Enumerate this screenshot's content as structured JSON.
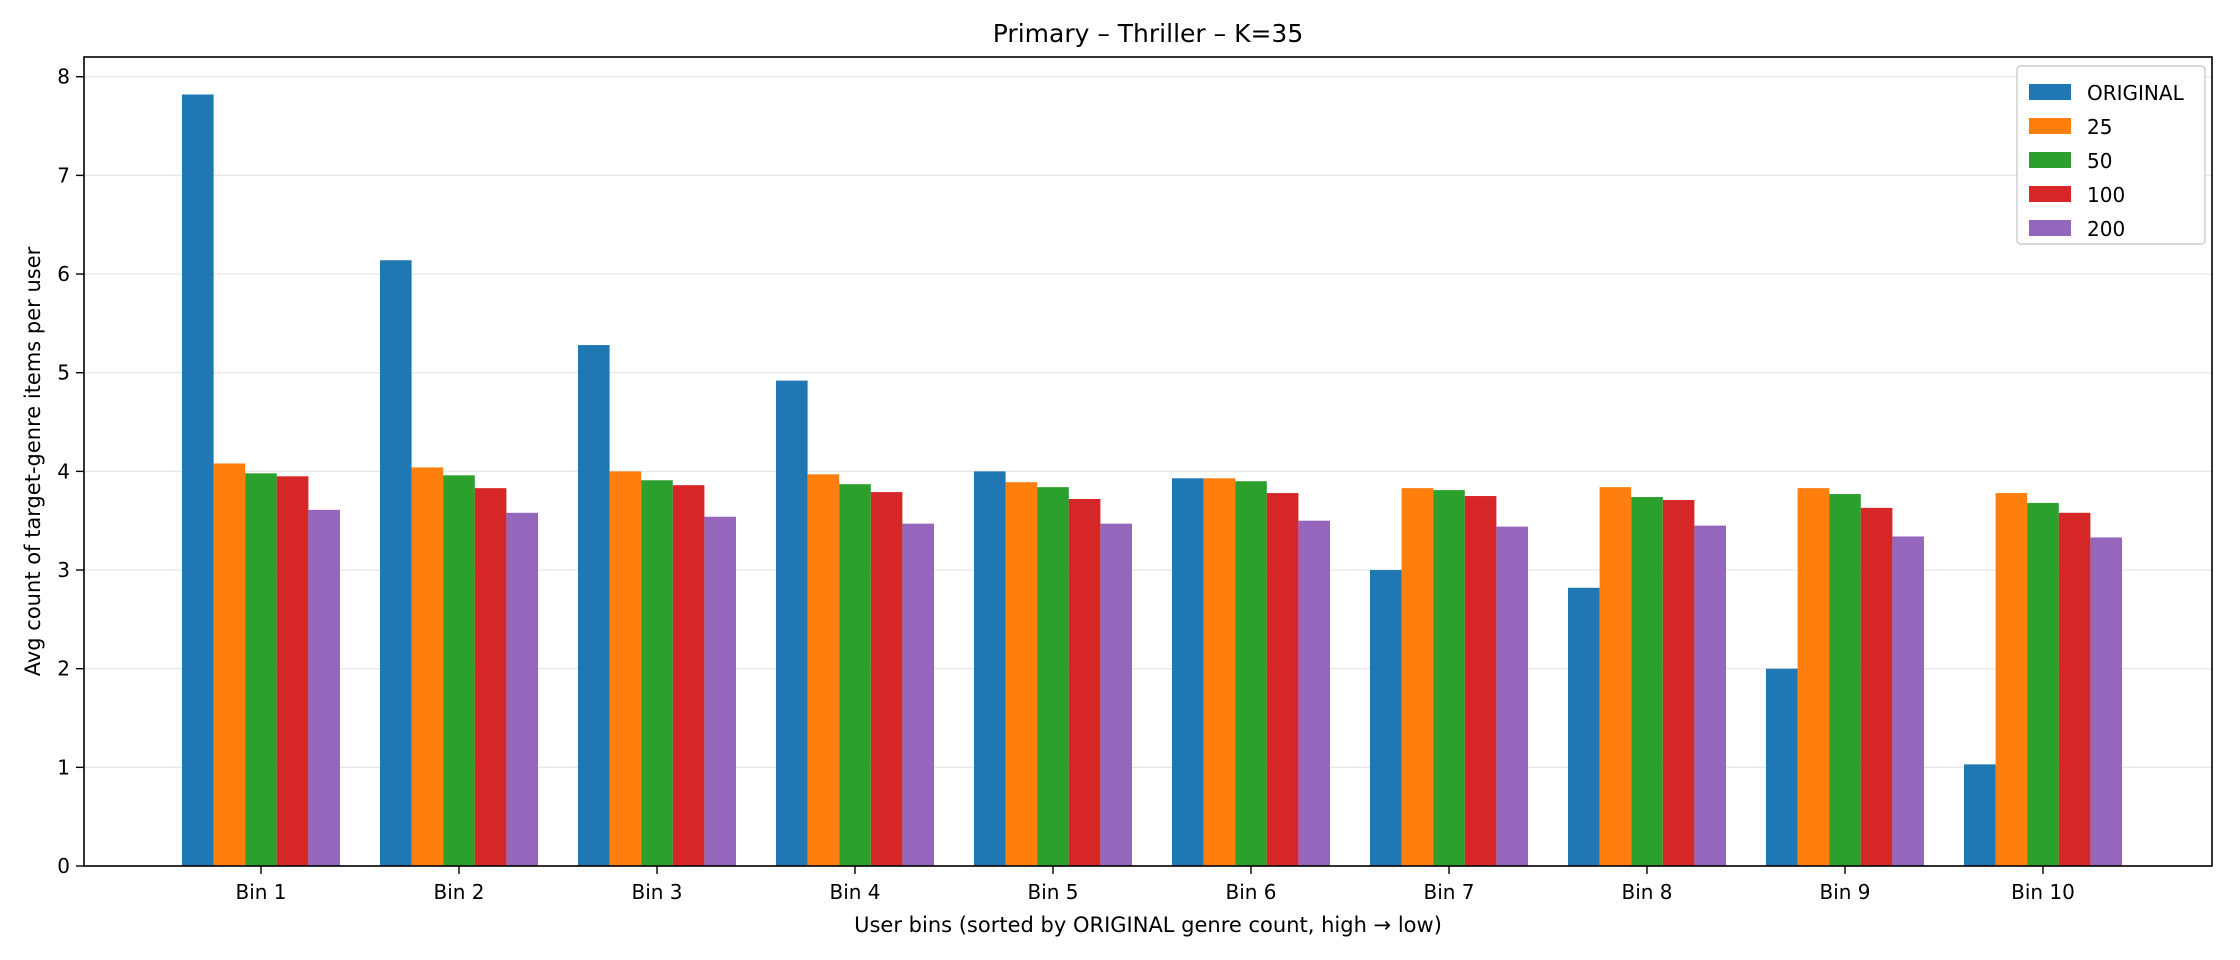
{
  "chart_data": {
    "type": "bar",
    "title": "Primary – Thriller – K=35",
    "xlabel": "User bins (sorted by ORIGINAL genre count, high → low)",
    "ylabel": "Avg count of target-genre items per user",
    "ylim": [
      0,
      8.2
    ],
    "yticks": [
      0,
      1,
      2,
      3,
      4,
      5,
      6,
      7,
      8
    ],
    "grid": "y-axis, light",
    "legend_position": "top-right",
    "categories": [
      "Bin 1",
      "Bin 2",
      "Bin 3",
      "Bin 4",
      "Bin 5",
      "Bin 6",
      "Bin 7",
      "Bin 8",
      "Bin 9",
      "Bin 10"
    ],
    "series": [
      {
        "name": "ORIGINAL",
        "color": "#1f77b4",
        "values": [
          7.82,
          6.14,
          5.28,
          4.92,
          4.0,
          3.93,
          3.0,
          2.82,
          2.0,
          1.03
        ]
      },
      {
        "name": "25",
        "color": "#ff7f0e",
        "values": [
          4.08,
          4.04,
          4.0,
          3.97,
          3.89,
          3.93,
          3.83,
          3.84,
          3.83,
          3.78
        ]
      },
      {
        "name": "50",
        "color": "#2ca02c",
        "values": [
          3.98,
          3.96,
          3.91,
          3.87,
          3.84,
          3.9,
          3.81,
          3.74,
          3.77,
          3.68
        ]
      },
      {
        "name": "100",
        "color": "#d62728",
        "values": [
          3.95,
          3.83,
          3.86,
          3.79,
          3.72,
          3.78,
          3.75,
          3.71,
          3.63,
          3.58
        ]
      },
      {
        "name": "200",
        "color": "#9467bd",
        "values": [
          3.61,
          3.58,
          3.54,
          3.47,
          3.47,
          3.5,
          3.44,
          3.45,
          3.34,
          3.33
        ]
      }
    ]
  }
}
